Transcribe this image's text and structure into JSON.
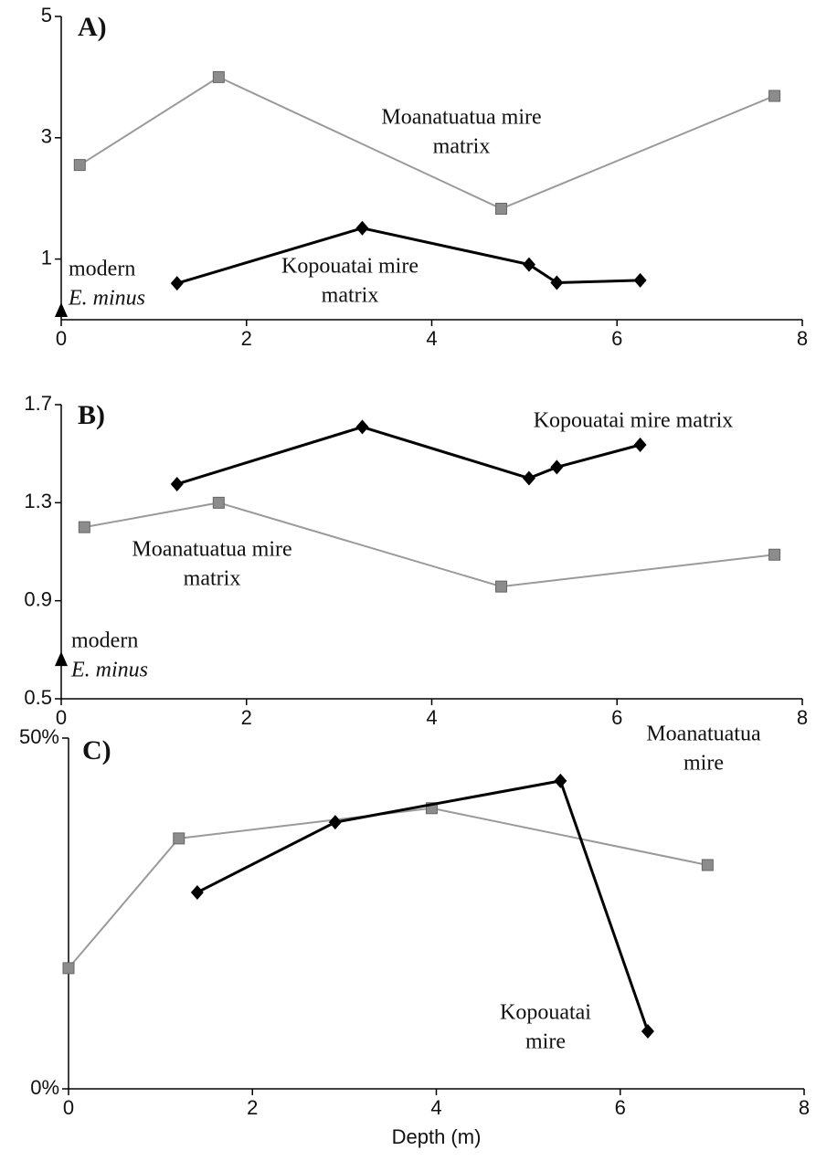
{
  "chart_data": [
    {
      "type": "line",
      "title": "A)",
      "xlim": [
        0,
        8
      ],
      "xticks": [
        0,
        2,
        4,
        6,
        8
      ],
      "ylim": [
        0,
        5
      ],
      "yticks": [
        1,
        3,
        5
      ],
      "series": [
        {
          "label": [
            "Moanatuatua mire",
            "matrix"
          ],
          "color": "#9a9a9a",
          "marker": "square",
          "x": [
            0.2,
            1.7,
            4.75,
            7.7
          ],
          "values": [
            2.55,
            4.0,
            1.83,
            3.69
          ]
        },
        {
          "label": [
            "Kopouatai mire",
            "matrix"
          ],
          "color": "#000000",
          "marker": "diamond",
          "x": [
            1.25,
            3.25,
            5.05,
            5.35,
            6.25
          ],
          "values": [
            0.6,
            1.51,
            0.91,
            0.61,
            0.65
          ]
        },
        {
          "label": [
            "modern",
            "E. minus"
          ],
          "label_italic": [
            false,
            true
          ],
          "color": "#000000",
          "marker": "triangle",
          "x": [
            0
          ],
          "values": [
            0.15
          ]
        }
      ]
    },
    {
      "type": "line",
      "title": "B)",
      "xlim": [
        0,
        8
      ],
      "xticks": [
        0,
        2,
        4,
        6,
        8
      ],
      "ylim": [
        0.5,
        1.7
      ],
      "yticks": [
        0.5,
        0.9,
        1.3,
        1.7
      ],
      "series": [
        {
          "label": [
            "Moanatuatua mire",
            "matrix"
          ],
          "color": "#9a9a9a",
          "marker": "square",
          "x": [
            0.25,
            1.7,
            4.75,
            7.7
          ],
          "values": [
            1.2,
            1.3,
            0.958,
            1.088
          ]
        },
        {
          "label": [
            "Kopouatai mire matrix"
          ],
          "color": "#000000",
          "marker": "diamond",
          "x": [
            1.25,
            3.25,
            5.05,
            5.35,
            6.25
          ],
          "values": [
            1.376,
            1.609,
            1.4,
            1.445,
            1.536
          ]
        },
        {
          "label": [
            "modern",
            "E. minus"
          ],
          "label_italic": [
            false,
            true
          ],
          "color": "#000000",
          "marker": "triangle",
          "x": [
            0
          ],
          "values": [
            0.66
          ]
        }
      ]
    },
    {
      "type": "line",
      "title": "C)",
      "xlabel": "Depth (m)",
      "xlim": [
        0,
        8
      ],
      "xticks": [
        0,
        2,
        4,
        6,
        8
      ],
      "ylim": [
        0,
        50
      ],
      "yticks": [
        {
          "value": 0,
          "label": "0%"
        },
        {
          "value": 50,
          "label": "50%"
        }
      ],
      "series": [
        {
          "label": [
            "Moanatuatua",
            "mire"
          ],
          "color": "#9a9a9a",
          "marker": "square",
          "x": [
            0,
            1.2,
            3.95,
            6.95
          ],
          "values": [
            17.2,
            35.7,
            40.0,
            31.9
          ]
        },
        {
          "label": [
            "Kopouatai",
            "mire"
          ],
          "color": "#000000",
          "marker": "diamond",
          "x": [
            1.4,
            2.9,
            5.35,
            6.3
          ],
          "values": [
            28.0,
            38.0,
            43.9,
            8.2
          ]
        }
      ]
    }
  ]
}
